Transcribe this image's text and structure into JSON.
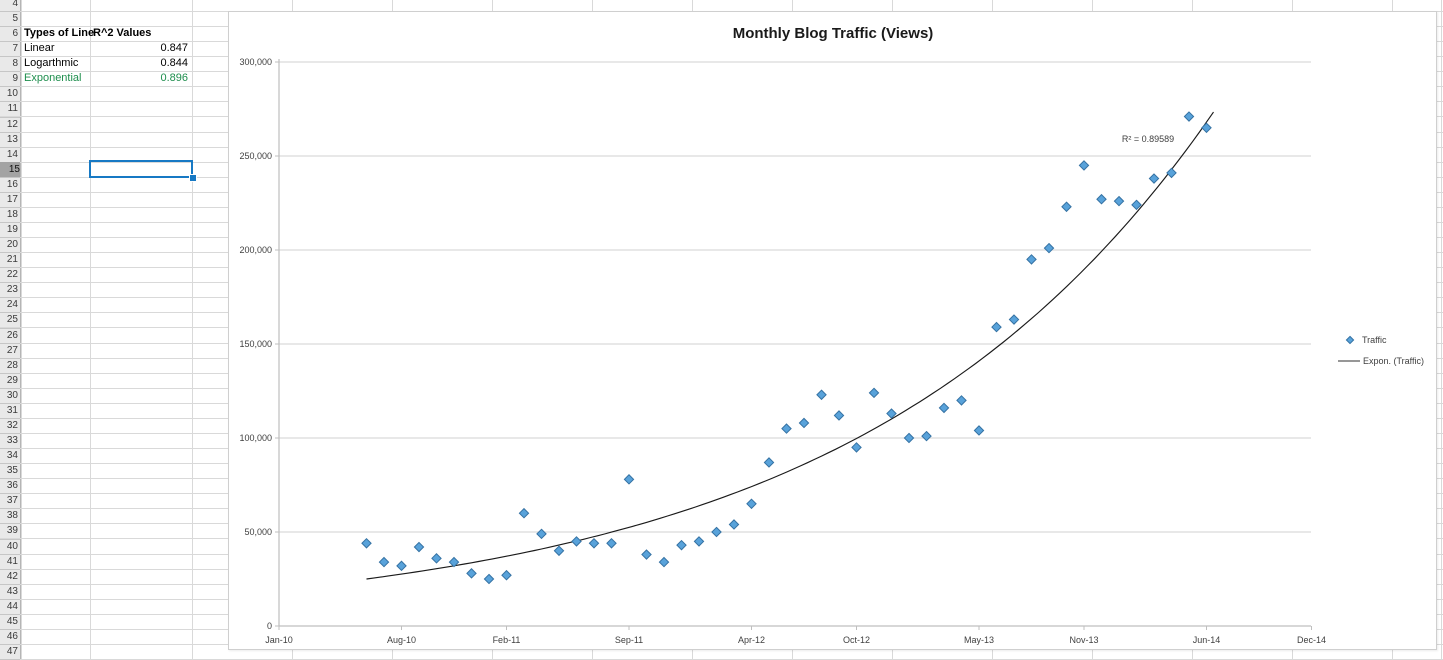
{
  "spreadsheet": {
    "row_headers": {
      "first": 4,
      "last": 47,
      "selected_row": 15
    },
    "table": {
      "header_type": "Types of Line",
      "header_r2": "R^2 Values",
      "rows": [
        {
          "label": "Linear",
          "value": "0.847",
          "style": "default"
        },
        {
          "label": "Logarthmic",
          "value": "0.844",
          "style": "default"
        },
        {
          "label": "Exponential",
          "value": "0.896",
          "style": "green"
        }
      ]
    },
    "selected_cell": "B15",
    "colors": {
      "selection_blue": "#1779c4",
      "good_green": "#1e8e4d"
    }
  },
  "chart_data": {
    "type": "scatter",
    "title": "Monthly Blog Traffic (Views)",
    "series": [
      {
        "name": "Traffic",
        "x": [
          "Jun-10",
          "Jul-10",
          "Aug-10",
          "Sep-10",
          "Oct-10",
          "Nov-10",
          "Dec-10",
          "Jan-11",
          "Feb-11",
          "Mar-11",
          "Apr-11",
          "May-11",
          "Jun-11",
          "Jul-11",
          "Aug-11",
          "Sep-11",
          "Oct-11",
          "Nov-11",
          "Dec-11",
          "Jan-12",
          "Feb-12",
          "Mar-12",
          "Apr-12",
          "May-12",
          "Jun-12",
          "Jul-12",
          "Aug-12",
          "Sep-12",
          "Oct-12",
          "Nov-12",
          "Dec-12",
          "Jan-13",
          "Feb-13",
          "Mar-13",
          "Apr-13",
          "May-13",
          "Jun-13",
          "Jul-13",
          "Aug-13",
          "Sep-13",
          "Oct-13",
          "Nov-13",
          "Dec-13",
          "Jan-14",
          "Feb-14",
          "Mar-14",
          "Apr-14",
          "May-14",
          "Jun-14"
        ],
        "values": [
          44000,
          34000,
          32000,
          42000,
          36000,
          34000,
          28000,
          25000,
          27000,
          60000,
          49000,
          40000,
          45000,
          44000,
          44000,
          78000,
          38000,
          34000,
          43000,
          45000,
          50000,
          54000,
          65000,
          87000,
          105000,
          108000,
          123000,
          112000,
          95000,
          124000,
          113000,
          100000,
          101000,
          116000,
          120000,
          104000,
          159000,
          163000,
          195000,
          201000,
          223000,
          245000,
          227000,
          226000,
          224000,
          238000,
          241000,
          271000,
          265000
        ],
        "start_month_offset": 5,
        "marker_color": "#58a2da",
        "marker_edge_color": "#3572a3"
      }
    ],
    "trendline": {
      "name": "Expon. (Traffic)",
      "kind": "exponential",
      "r2_label": "R² = 0.89589",
      "a": 19527,
      "b": 0.04942,
      "color": "#1a1a1a"
    },
    "x_axis": {
      "tick_labels": [
        "Jan-10",
        "Aug-10",
        "Feb-11",
        "Sep-11",
        "Apr-12",
        "Oct-12",
        "May-13",
        "Nov-13",
        "Jun-14",
        "Dec-14"
      ],
      "tick_months": [
        0,
        7,
        13,
        20,
        27,
        33,
        40,
        46,
        53,
        59
      ]
    },
    "y_axis": {
      "tick_labels": [
        "0",
        "50,000",
        "100,000",
        "150,000",
        "200,000",
        "250,000",
        "300,000"
      ],
      "tick_step": 50000,
      "ylim": [
        0,
        300000
      ]
    },
    "legend": {
      "entries": [
        "Traffic",
        "Expon. (Traffic)"
      ],
      "position": "right"
    },
    "grid": true
  }
}
